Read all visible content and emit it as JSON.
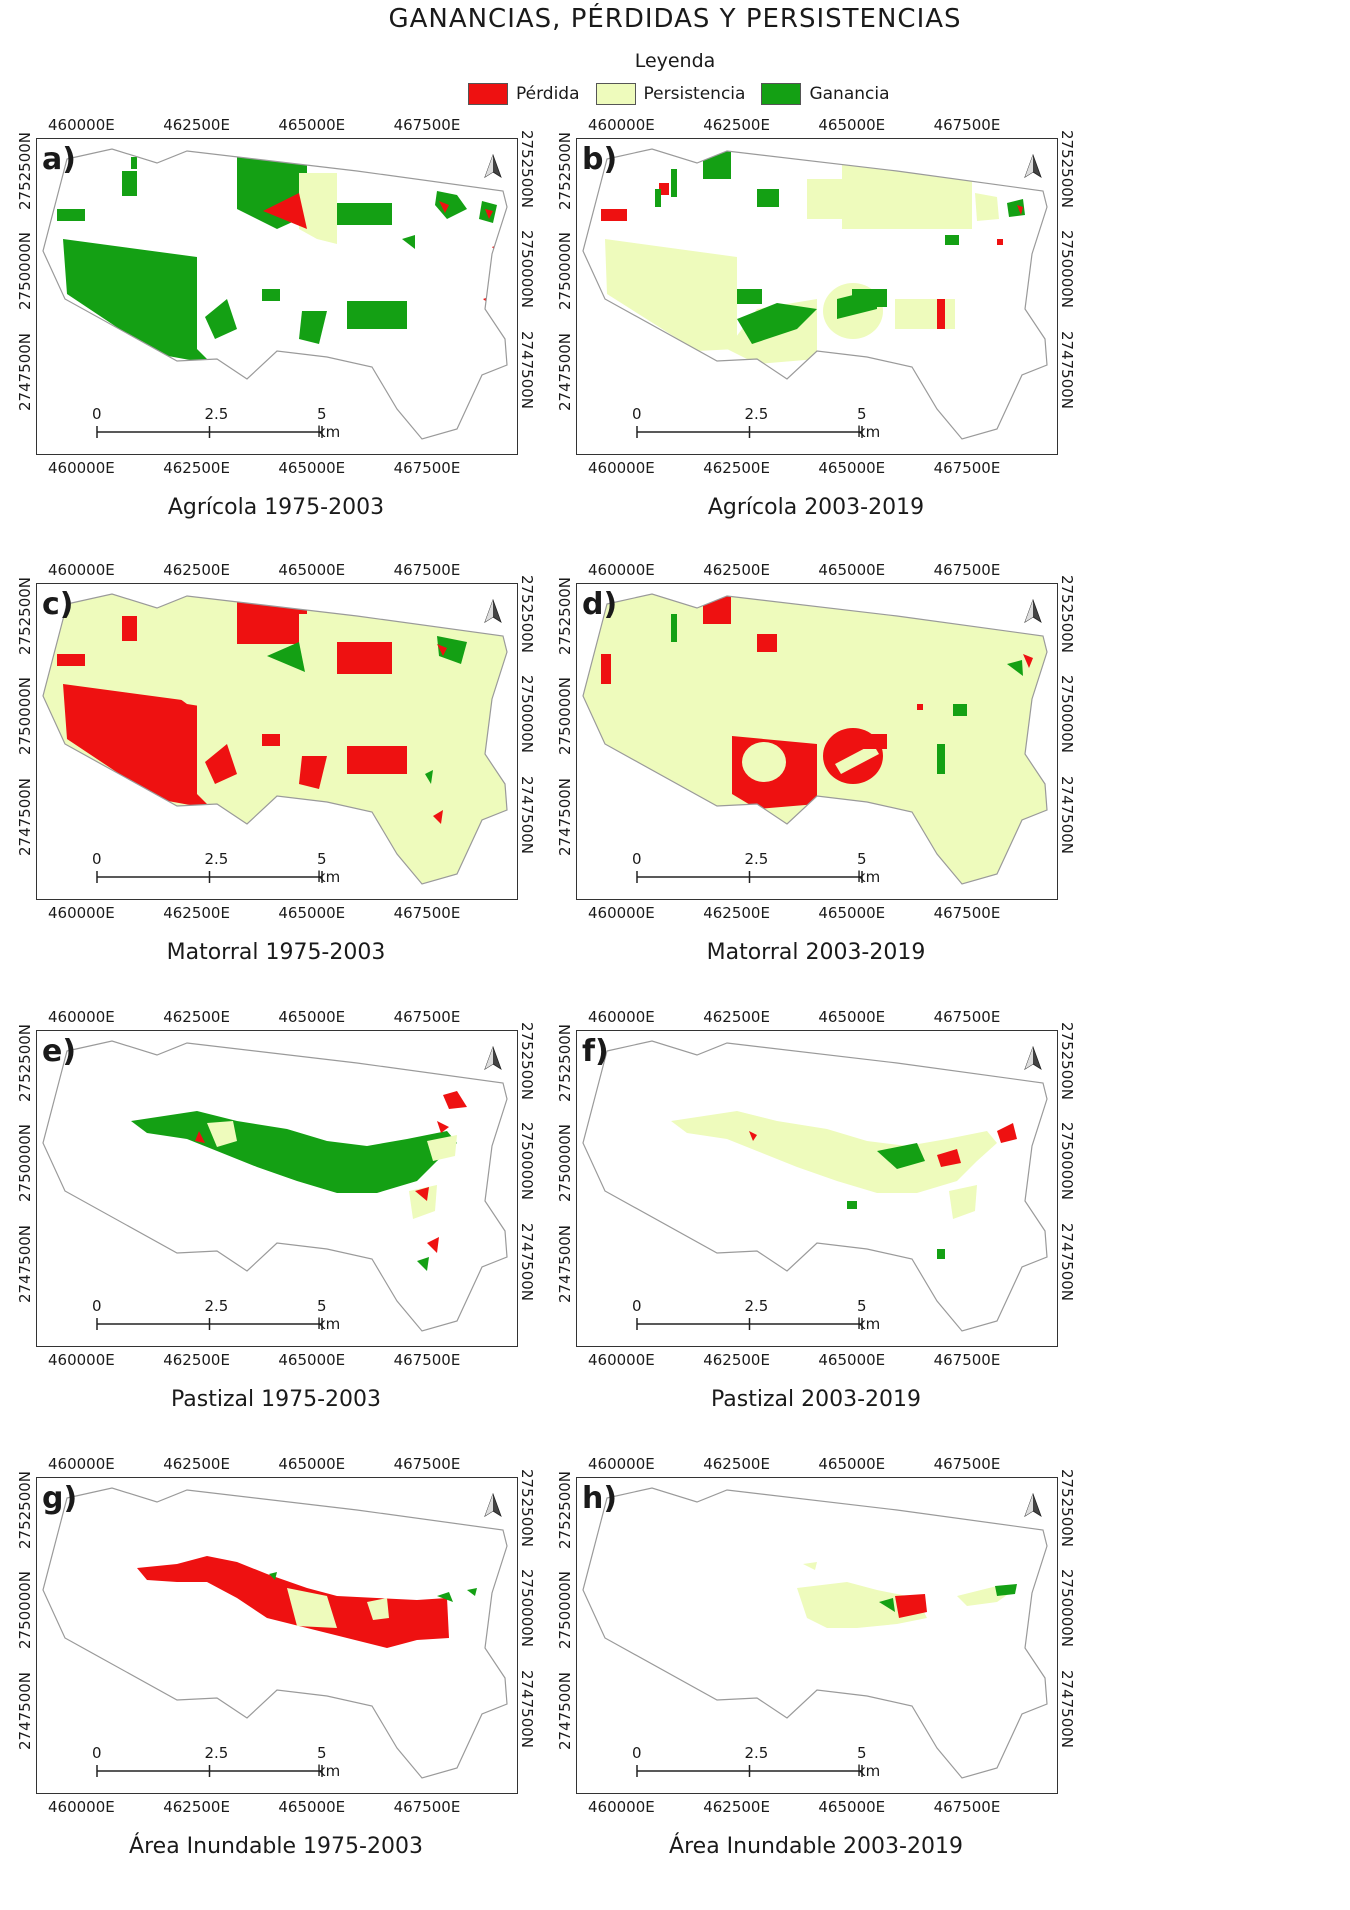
{
  "title": "GANANCIAS, PÉRDIDAS Y PERSISTENCIAS",
  "legend": {
    "title": "Leyenda",
    "items": [
      {
        "label": "Pérdida",
        "color": "#ee1111"
      },
      {
        "label": "Persistencia",
        "color": "#eefbbc"
      },
      {
        "label": "Ganancia",
        "color": "#14a014"
      }
    ]
  },
  "axes": {
    "x_ticks": [
      "460000E",
      "462500E",
      "465000E",
      "467500E"
    ],
    "y_ticks": [
      "2752500N",
      "2750000N",
      "2747500N"
    ]
  },
  "scale_bar": {
    "labels": [
      "0",
      "2.5",
      "5 km"
    ]
  },
  "north_arrow": "north-arrow-icon",
  "panels": [
    {
      "letter": "a)",
      "caption": "Agrícola 1975-2003"
    },
    {
      "letter": "b)",
      "caption": "Agrícola 2003-2019"
    },
    {
      "letter": "c)",
      "caption": "Matorral 1975-2003"
    },
    {
      "letter": "d)",
      "caption": "Matorral 2003-2019"
    },
    {
      "letter": "e)",
      "caption": "Pastizal 1975-2003"
    },
    {
      "letter": "f)",
      "caption": "Pastizal 2003-2019"
    },
    {
      "letter": "g)",
      "caption": "Área Inundable 1975-2003"
    },
    {
      "letter": "h)",
      "caption": "Área Inundable 2003-2019"
    }
  ]
}
